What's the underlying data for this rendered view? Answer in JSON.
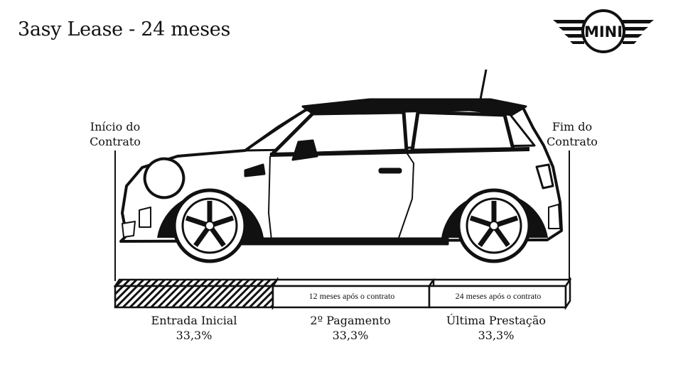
{
  "title": "3asy Lease - 24 meses",
  "logo": {
    "text": "MINI"
  },
  "timeline": {
    "start_label_1": "Início do",
    "start_label_2": "Contrato",
    "end_label_1": "Fim do",
    "end_label_2": "Contrato"
  },
  "segments": [
    {
      "caption": "",
      "label": "Entrada Inicial",
      "percent": "33,3%",
      "pattern": "hatched"
    },
    {
      "caption": "12 meses após o contrato",
      "label": "2º Pagamento",
      "percent": "33,3%",
      "pattern": "blank"
    },
    {
      "caption": "24 meses após o contrato",
      "label": "Última Prestação",
      "percent": "33,3%",
      "pattern": "blank"
    }
  ]
}
